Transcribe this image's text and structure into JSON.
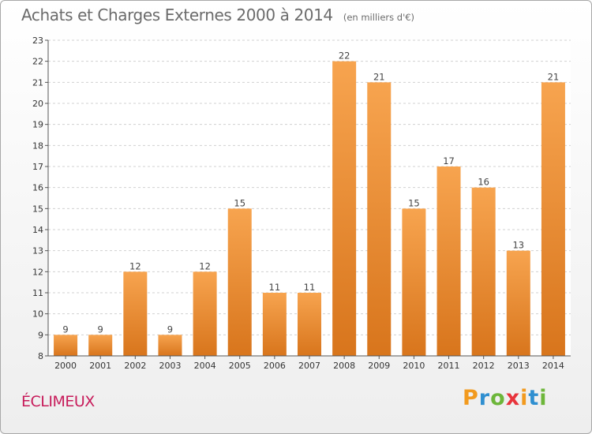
{
  "title": "Achats et Charges Externes 2000 à 2014",
  "subtitle": "(en milliers d'€)",
  "commune": "ÉCLIMEUX",
  "logo": {
    "text": "Proxiti",
    "letters": [
      "P",
      "r",
      "o",
      "x",
      "i",
      "t",
      "i"
    ],
    "colors": [
      "#f29a1e",
      "#2f8fd0",
      "#6db63a",
      "#e8343c",
      "#f29a1e",
      "#2f8fd0",
      "#6db63a"
    ]
  },
  "colors": {
    "bar_light": "#f7a44f",
    "bar_dark": "#d8751c",
    "title": "#6b6b6b",
    "commune": "#c71b5a"
  },
  "chart_data": {
    "type": "bar",
    "categories": [
      "2000",
      "2001",
      "2002",
      "2003",
      "2004",
      "2005",
      "2006",
      "2007",
      "2008",
      "2009",
      "2010",
      "2011",
      "2012",
      "2013",
      "2014"
    ],
    "values": [
      9,
      9,
      12,
      9,
      12,
      15,
      11,
      11,
      22,
      21,
      15,
      17,
      16,
      13,
      21
    ],
    "title": "Achats et Charges Externes 2000 à 2014",
    "subtitle": "(en milliers d'€)",
    "ylim": [
      8,
      23
    ],
    "yticks": [
      8,
      9,
      10,
      11,
      12,
      13,
      14,
      15,
      16,
      17,
      18,
      19,
      20,
      21,
      22,
      23
    ],
    "grid": true,
    "data_labels": true
  }
}
